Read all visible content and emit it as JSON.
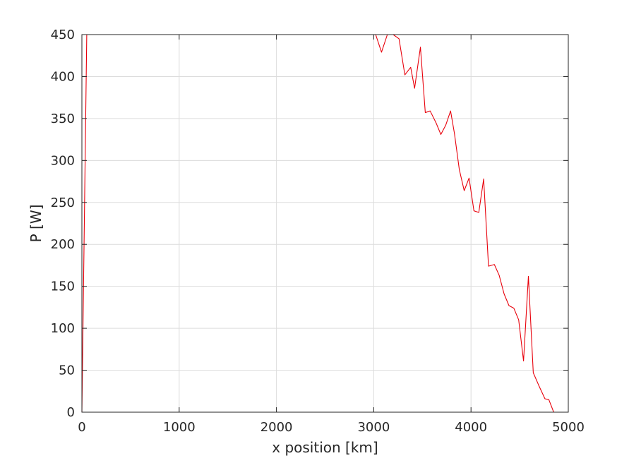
{
  "chart_data": {
    "type": "line",
    "title": "",
    "xlabel": "x position [km]",
    "ylabel": "P [W]",
    "xlim": [
      0,
      5000
    ],
    "ylim": [
      0,
      450
    ],
    "xticks": [
      0,
      1000,
      2000,
      3000,
      4000,
      5000
    ],
    "yticks": [
      0,
      50,
      100,
      150,
      200,
      250,
      300,
      350,
      400,
      450
    ],
    "grid": true,
    "line_color": "#e8000b",
    "series": [
      {
        "x": [
          0,
          50,
          100,
          3000,
          3020,
          3080,
          3140,
          3200,
          3260,
          3320,
          3380,
          3420,
          3480,
          3530,
          3580,
          3640,
          3690,
          3740,
          3790,
          3830,
          3880,
          3930,
          3980,
          4030,
          4080,
          4130,
          4180,
          4240,
          4290,
          4340,
          4390,
          4440,
          4490,
          4540,
          4590,
          4640,
          4700,
          4760,
          4800,
          4850,
          5000
        ],
        "y": [
          0,
          450,
          450,
          450,
          450,
          429,
          450,
          450,
          445,
          402,
          411,
          386,
          435,
          357,
          359,
          345,
          331,
          342,
          359,
          332,
          289,
          264,
          279,
          240,
          238,
          278,
          174,
          176,
          163,
          141,
          127,
          124,
          110,
          61,
          162,
          47,
          31,
          16,
          15,
          0,
          0
        ]
      }
    ]
  }
}
